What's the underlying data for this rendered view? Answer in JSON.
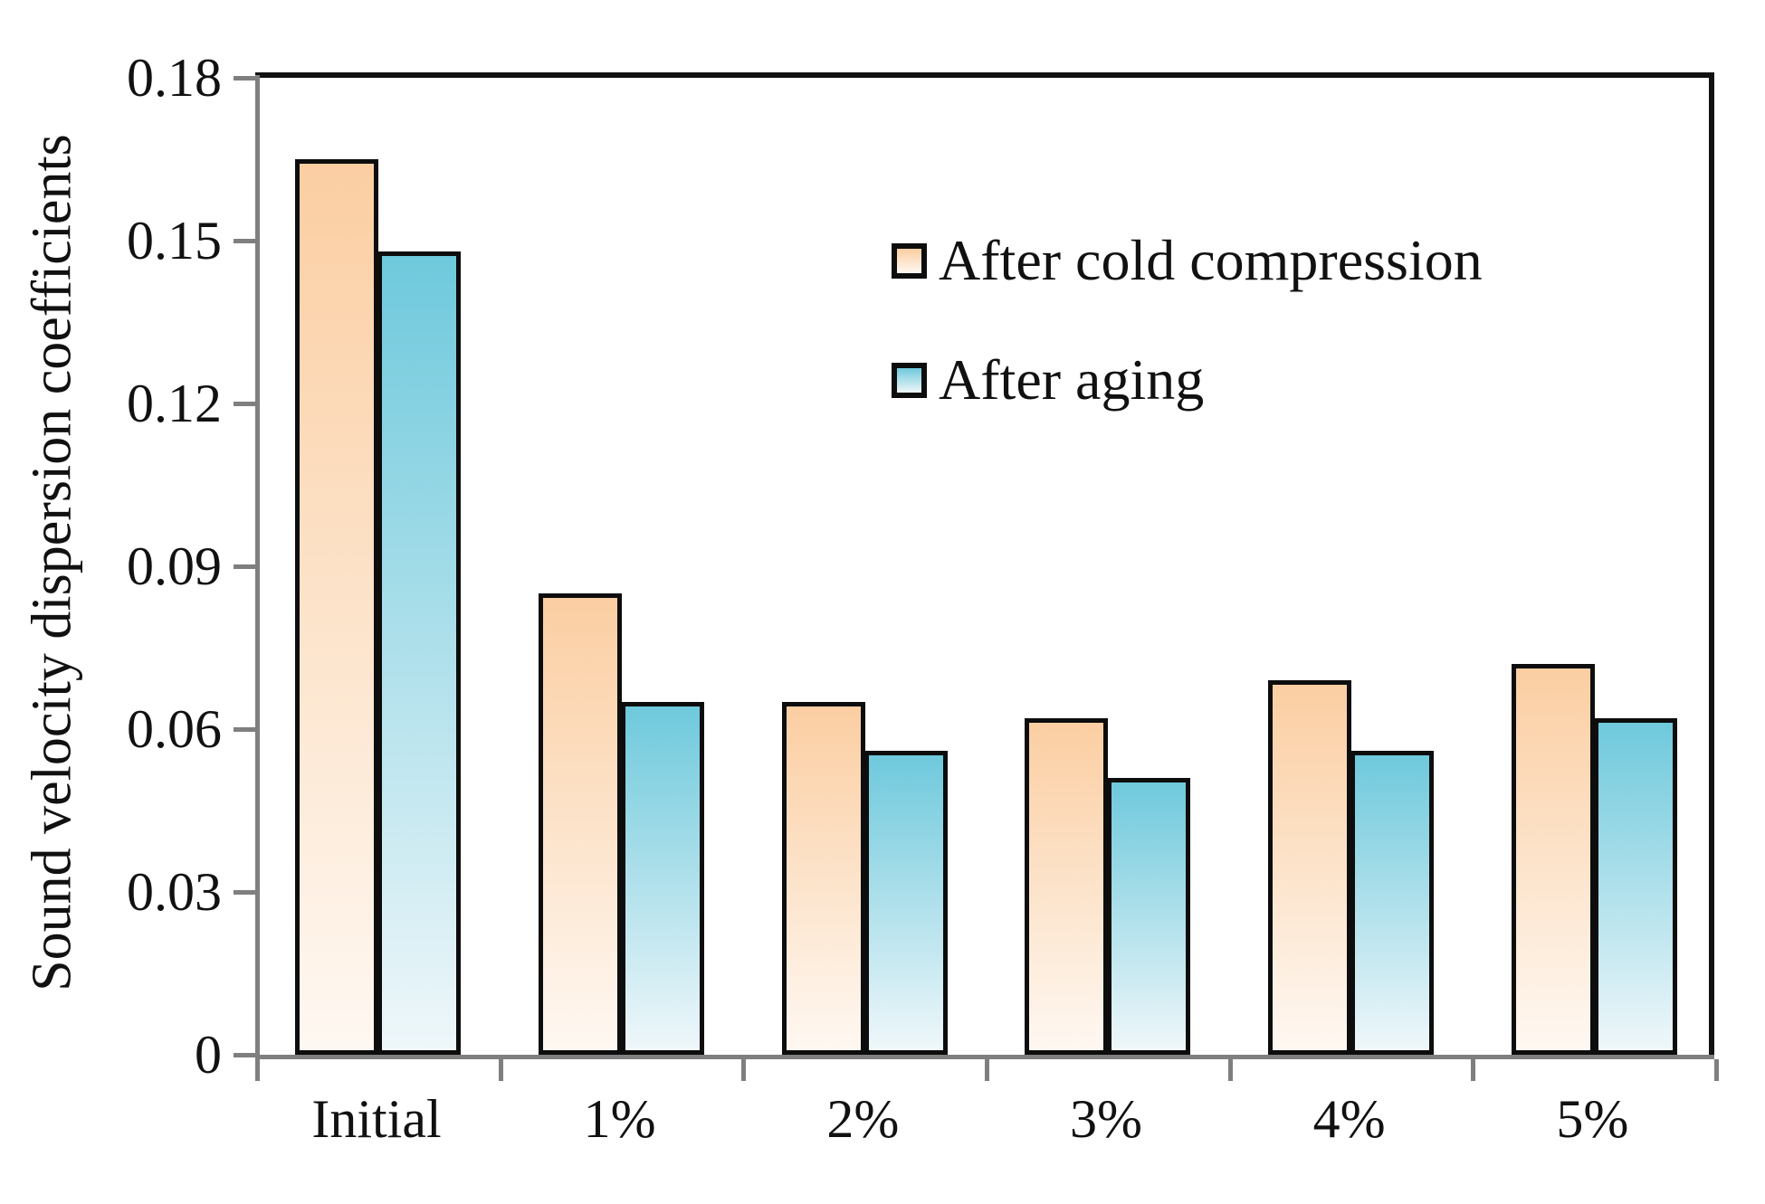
{
  "chart_data": {
    "type": "bar",
    "title": "",
    "xlabel": "",
    "ylabel": "Sound velocity dispersion coefficients",
    "categories": [
      "Initial",
      "1%",
      "2%",
      "3%",
      "4%",
      "5%"
    ],
    "series": [
      {
        "name": "After cold compression",
        "values": [
          0.165,
          0.085,
          0.065,
          0.062,
          0.069,
          0.072
        ],
        "color_top": "#fbcea2",
        "color_bottom": "#fef8f2"
      },
      {
        "name": "After aging",
        "values": [
          0.148,
          0.065,
          0.056,
          0.051,
          0.056,
          0.062
        ],
        "color_top": "#6ec9dc",
        "color_bottom": "#eff7fa"
      }
    ],
    "ylim": [
      0,
      0.18
    ],
    "yticks": [
      0,
      0.03,
      0.06,
      0.09,
      0.12,
      0.15,
      0.18
    ],
    "ytick_labels": [
      "0",
      "0.03",
      "0.06",
      "0.09",
      "0.12",
      "0.15",
      "0.18"
    ],
    "grid": false,
    "legend_position": "upper-right-inside",
    "bar_border_color": "#0d0d0d",
    "axis_color_left_bottom": "#7f7f7f",
    "axis_color_top_right": "#121212"
  }
}
